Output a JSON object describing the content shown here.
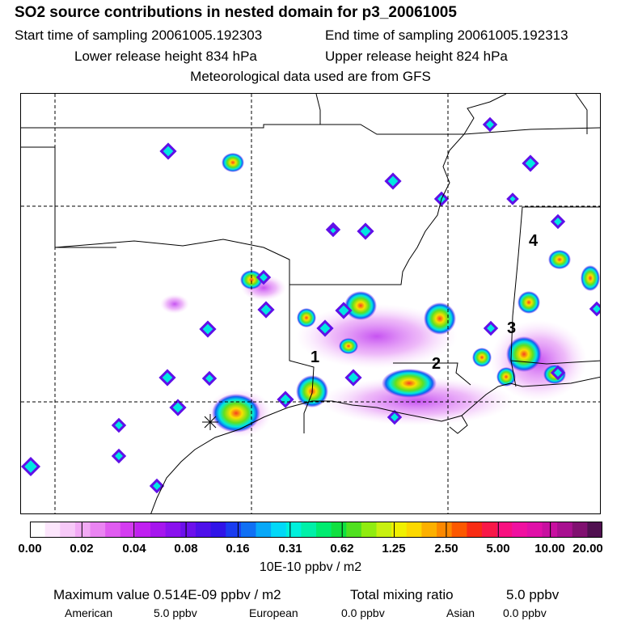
{
  "header": {
    "title": "SO2 source contributions in nested domain for p3_20061005",
    "start_sampling": "Start time of sampling 20061005.192303",
    "end_sampling": "End time of sampling 20061005.192313",
    "lower_release": "Lower release height  834 hPa",
    "upper_release": "Upper release height  824 hPa",
    "met_data": "Meteorological data used are from GFS"
  },
  "map": {
    "markers": [
      "1",
      "2",
      "3",
      "4"
    ],
    "receptor_symbol": "✳"
  },
  "colorbar": {
    "tick_labels": [
      "0.00",
      "0.02",
      "0.04",
      "0.08",
      "0.16",
      "0.31",
      "0.62",
      "1.25",
      "2.50",
      "5.00",
      "10.00",
      "20.00"
    ],
    "units": "10E-10 ppbv / m2",
    "colors": [
      "#ffffff",
      "#fce6fc",
      "#f7c9f8",
      "#f2aaf5",
      "#ea84f2",
      "#e05cf0",
      "#d43cf0",
      "#c020f0",
      "#a616ee",
      "#8a12ee",
      "#6c10ec",
      "#4e10ea",
      "#3014e8",
      "#1a3cf0",
      "#1070f4",
      "#08a8f8",
      "#02d8f8",
      "#00f0dc",
      "#00f0a8",
      "#00ec70",
      "#10e040",
      "#50e020",
      "#90ec10",
      "#c8f010",
      "#f0f000",
      "#fcd800",
      "#fcb000",
      "#fc8800",
      "#fc5800",
      "#f82c14",
      "#f81848",
      "#f81080",
      "#f010a0",
      "#e010a8",
      "#c810a0",
      "#a81090",
      "#801070",
      "#501050"
    ]
  },
  "footer": {
    "max_value": "Maximum value  0.514E-09 ppbv / m2",
    "total_label": "Total mixing ratio",
    "total_value": "5.0 ppbv",
    "american_label": "American",
    "american_value": "5.0 ppbv",
    "european_label": "European",
    "european_value": "0.0 ppbv",
    "asian_label": "Asian",
    "asian_value": "0.0 ppbv"
  }
}
